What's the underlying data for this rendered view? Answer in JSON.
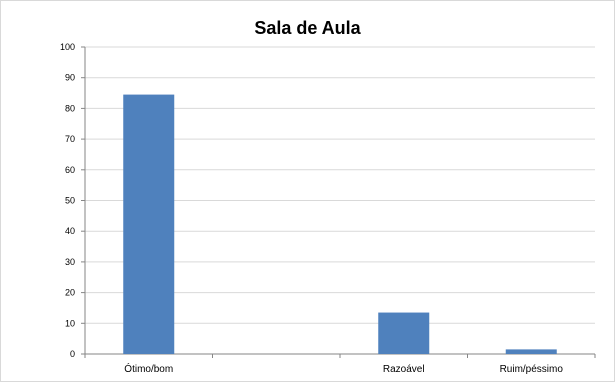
{
  "chart_data": {
    "type": "bar",
    "title": "Sala de Aula",
    "xlabel": "",
    "ylabel": "",
    "categories": [
      "Ótimo/bom",
      "",
      "Razoável",
      "Ruim/péssimo"
    ],
    "values": [
      84.5,
      0,
      13.5,
      1.5
    ],
    "ylim": [
      0,
      100
    ],
    "yticks": [
      "0",
      "10",
      "20",
      "30",
      "40",
      "50",
      "60",
      "70",
      "80",
      "90",
      "100"
    ],
    "grid": true,
    "legend": "none",
    "bar_color": "#4f81bd",
    "grid_color": "#d9d9d9"
  }
}
